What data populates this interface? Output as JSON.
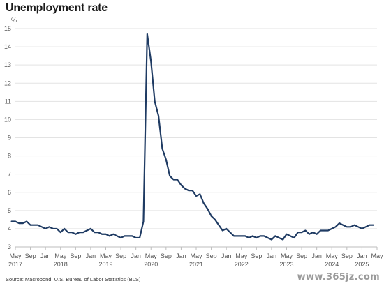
{
  "title": "Unemployment rate",
  "source": "Source: Macrobond, U.S. Bureau of Labor Statistics (BLS)",
  "watermark": "www.365jz.com",
  "chart_data": {
    "type": "line",
    "title": "Unemployment rate",
    "ylabel": "%",
    "xlabel": "",
    "ylim": [
      3,
      15
    ],
    "yticks": [
      3,
      4,
      5,
      6,
      7,
      8,
      9,
      10,
      11,
      12,
      13,
      14,
      15
    ],
    "grid": "horizontal",
    "line_color": "#1f3b63",
    "x_ticks": [
      {
        "date": "2017-05",
        "month": "May",
        "year": "2017"
      },
      {
        "date": "2017-09",
        "month": "Sep",
        "year": ""
      },
      {
        "date": "2018-01",
        "month": "Jan",
        "year": ""
      },
      {
        "date": "2018-05",
        "month": "May",
        "year": "2018"
      },
      {
        "date": "2018-09",
        "month": "Sep",
        "year": ""
      },
      {
        "date": "2019-01",
        "month": "Jan",
        "year": ""
      },
      {
        "date": "2019-05",
        "month": "May",
        "year": "2019"
      },
      {
        "date": "2019-09",
        "month": "Sep",
        "year": ""
      },
      {
        "date": "2020-01",
        "month": "Jan",
        "year": ""
      },
      {
        "date": "2020-05",
        "month": "May",
        "year": "2020"
      },
      {
        "date": "2020-09",
        "month": "Sep",
        "year": ""
      },
      {
        "date": "2021-01",
        "month": "Jan",
        "year": ""
      },
      {
        "date": "2021-05",
        "month": "May",
        "year": "2021"
      },
      {
        "date": "2021-09",
        "month": "Sep",
        "year": ""
      },
      {
        "date": "2022-01",
        "month": "Jan",
        "year": ""
      },
      {
        "date": "2022-05",
        "month": "May",
        "year": "2022"
      },
      {
        "date": "2022-09",
        "month": "Sep",
        "year": ""
      },
      {
        "date": "2023-01",
        "month": "Jan",
        "year": ""
      },
      {
        "date": "2023-05",
        "month": "May",
        "year": "2023"
      },
      {
        "date": "2023-09",
        "month": "Sep",
        "year": ""
      },
      {
        "date": "2024-01",
        "month": "Jan",
        "year": ""
      },
      {
        "date": "2024-05",
        "month": "May",
        "year": "2024"
      },
      {
        "date": "2024-09",
        "month": "Sep",
        "year": ""
      },
      {
        "date": "2025-01",
        "month": "Jan",
        "year": "2025"
      },
      {
        "date": "2025-05",
        "month": "May",
        "year": ""
      }
    ],
    "series": [
      {
        "x": [
          "2017-04",
          "2017-05",
          "2017-06",
          "2017-07",
          "2017-08",
          "2017-09",
          "2017-10",
          "2017-11",
          "2017-12",
          "2018-01",
          "2018-02",
          "2018-03",
          "2018-04",
          "2018-05",
          "2018-06",
          "2018-07",
          "2018-08",
          "2018-09",
          "2018-10",
          "2018-11",
          "2018-12",
          "2019-01",
          "2019-02",
          "2019-03",
          "2019-04",
          "2019-05",
          "2019-06",
          "2019-07",
          "2019-08",
          "2019-09",
          "2019-10",
          "2019-11",
          "2019-12",
          "2020-01",
          "2020-02",
          "2020-03",
          "2020-04",
          "2020-05",
          "2020-06",
          "2020-07",
          "2020-08",
          "2020-09",
          "2020-10",
          "2020-11",
          "2020-12",
          "2021-01",
          "2021-02",
          "2021-03",
          "2021-04",
          "2021-05",
          "2021-06",
          "2021-07",
          "2021-08",
          "2021-09",
          "2021-10",
          "2021-11",
          "2021-12",
          "2022-01",
          "2022-02",
          "2022-03",
          "2022-04",
          "2022-05",
          "2022-06",
          "2022-07",
          "2022-08",
          "2022-09",
          "2022-10",
          "2022-11",
          "2022-12",
          "2023-01",
          "2023-02",
          "2023-03",
          "2023-04",
          "2023-05",
          "2023-06",
          "2023-07",
          "2023-08",
          "2023-09",
          "2023-10",
          "2023-11",
          "2023-12",
          "2024-01",
          "2024-02",
          "2024-03",
          "2024-04",
          "2024-05",
          "2024-06",
          "2024-07",
          "2024-08",
          "2024-09",
          "2024-10",
          "2024-11",
          "2024-12",
          "2025-01",
          "2025-02",
          "2025-03",
          "2025-04"
        ],
        "values": [
          4.4,
          4.4,
          4.3,
          4.3,
          4.4,
          4.2,
          4.2,
          4.2,
          4.1,
          4.0,
          4.1,
          4.0,
          4.0,
          3.8,
          4.0,
          3.8,
          3.8,
          3.7,
          3.8,
          3.8,
          3.9,
          4.0,
          3.8,
          3.8,
          3.7,
          3.7,
          3.6,
          3.7,
          3.6,
          3.5,
          3.6,
          3.6,
          3.6,
          3.5,
          3.5,
          4.4,
          14.7,
          13.2,
          11.0,
          10.2,
          8.4,
          7.8,
          6.9,
          6.7,
          6.7,
          6.4,
          6.2,
          6.1,
          6.1,
          5.8,
          5.9,
          5.4,
          5.1,
          4.7,
          4.5,
          4.2,
          3.9,
          4.0,
          3.8,
          3.6,
          3.6,
          3.6,
          3.6,
          3.5,
          3.6,
          3.5,
          3.6,
          3.6,
          3.5,
          3.4,
          3.6,
          3.5,
          3.4,
          3.7,
          3.6,
          3.5,
          3.8,
          3.8,
          3.9,
          3.7,
          3.8,
          3.7,
          3.9,
          3.9,
          3.9,
          4.0,
          4.1,
          4.3,
          4.2,
          4.1,
          4.1,
          4.2,
          4.1,
          4.0,
          4.1,
          4.2,
          4.2
        ]
      }
    ]
  }
}
